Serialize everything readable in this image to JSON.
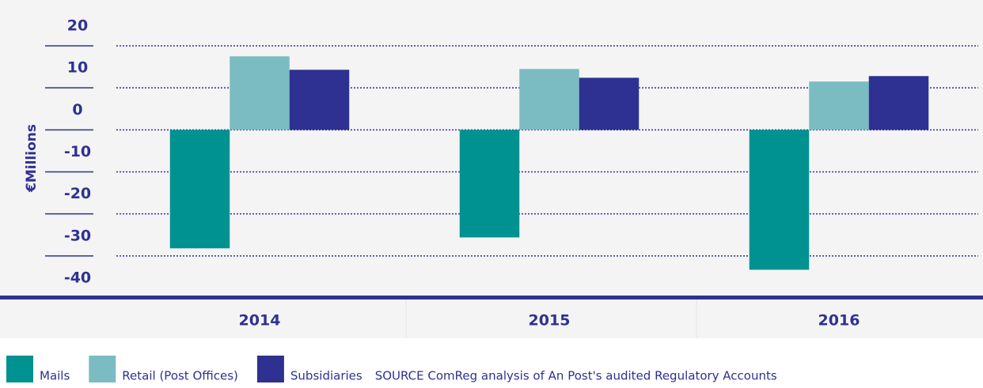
{
  "chart_data": {
    "type": "bar",
    "categories": [
      "2014",
      "2015",
      "2016"
    ],
    "series": [
      {
        "name": "Mails",
        "color": "#009191",
        "values": [
          -28.2,
          -25.6,
          -33.3
        ]
      },
      {
        "name": "Retail (Post Offices)",
        "color": "#7bbcc2",
        "values": [
          17.5,
          14.5,
          11.5
        ]
      },
      {
        "name": "Subsidiaries",
        "color": "#2e3192",
        "values": [
          14.3,
          12.4,
          12.8
        ]
      }
    ],
    "ylabel": "€Millions",
    "ylim": [
      -40,
      20
    ],
    "yticks": [
      -40,
      -30,
      -20,
      -10,
      0,
      10,
      20
    ],
    "grid": true,
    "source": "SOURCE ComReg analysis of An Post's audited Regulatory Accounts"
  }
}
